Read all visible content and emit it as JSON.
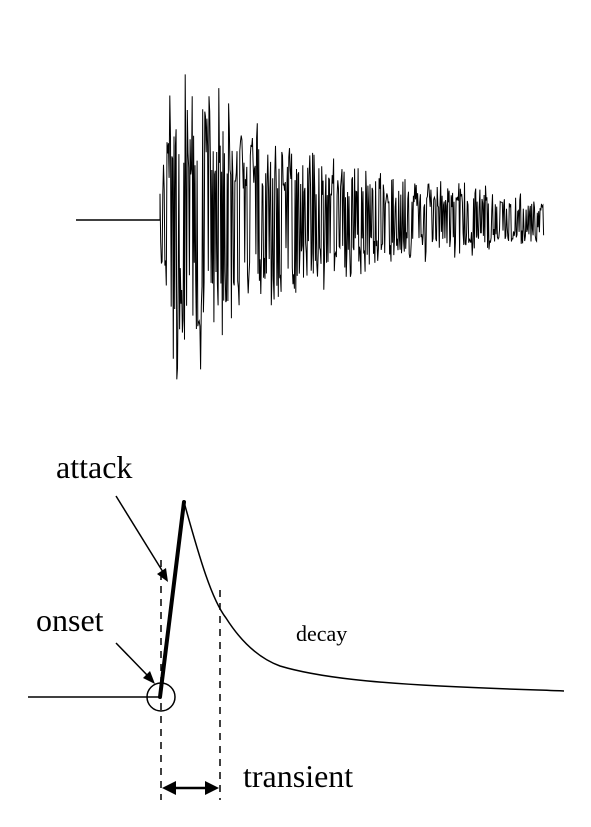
{
  "diagram": {
    "labels": {
      "attack": "attack",
      "onset": "onset",
      "decay": "decay",
      "transient": "transient"
    },
    "colors": {
      "ink": "#000000",
      "background": "#ffffff"
    },
    "waveform": {
      "description_shown": "noise burst with fast onset and exponential-like decay",
      "seed": 7
    }
  }
}
